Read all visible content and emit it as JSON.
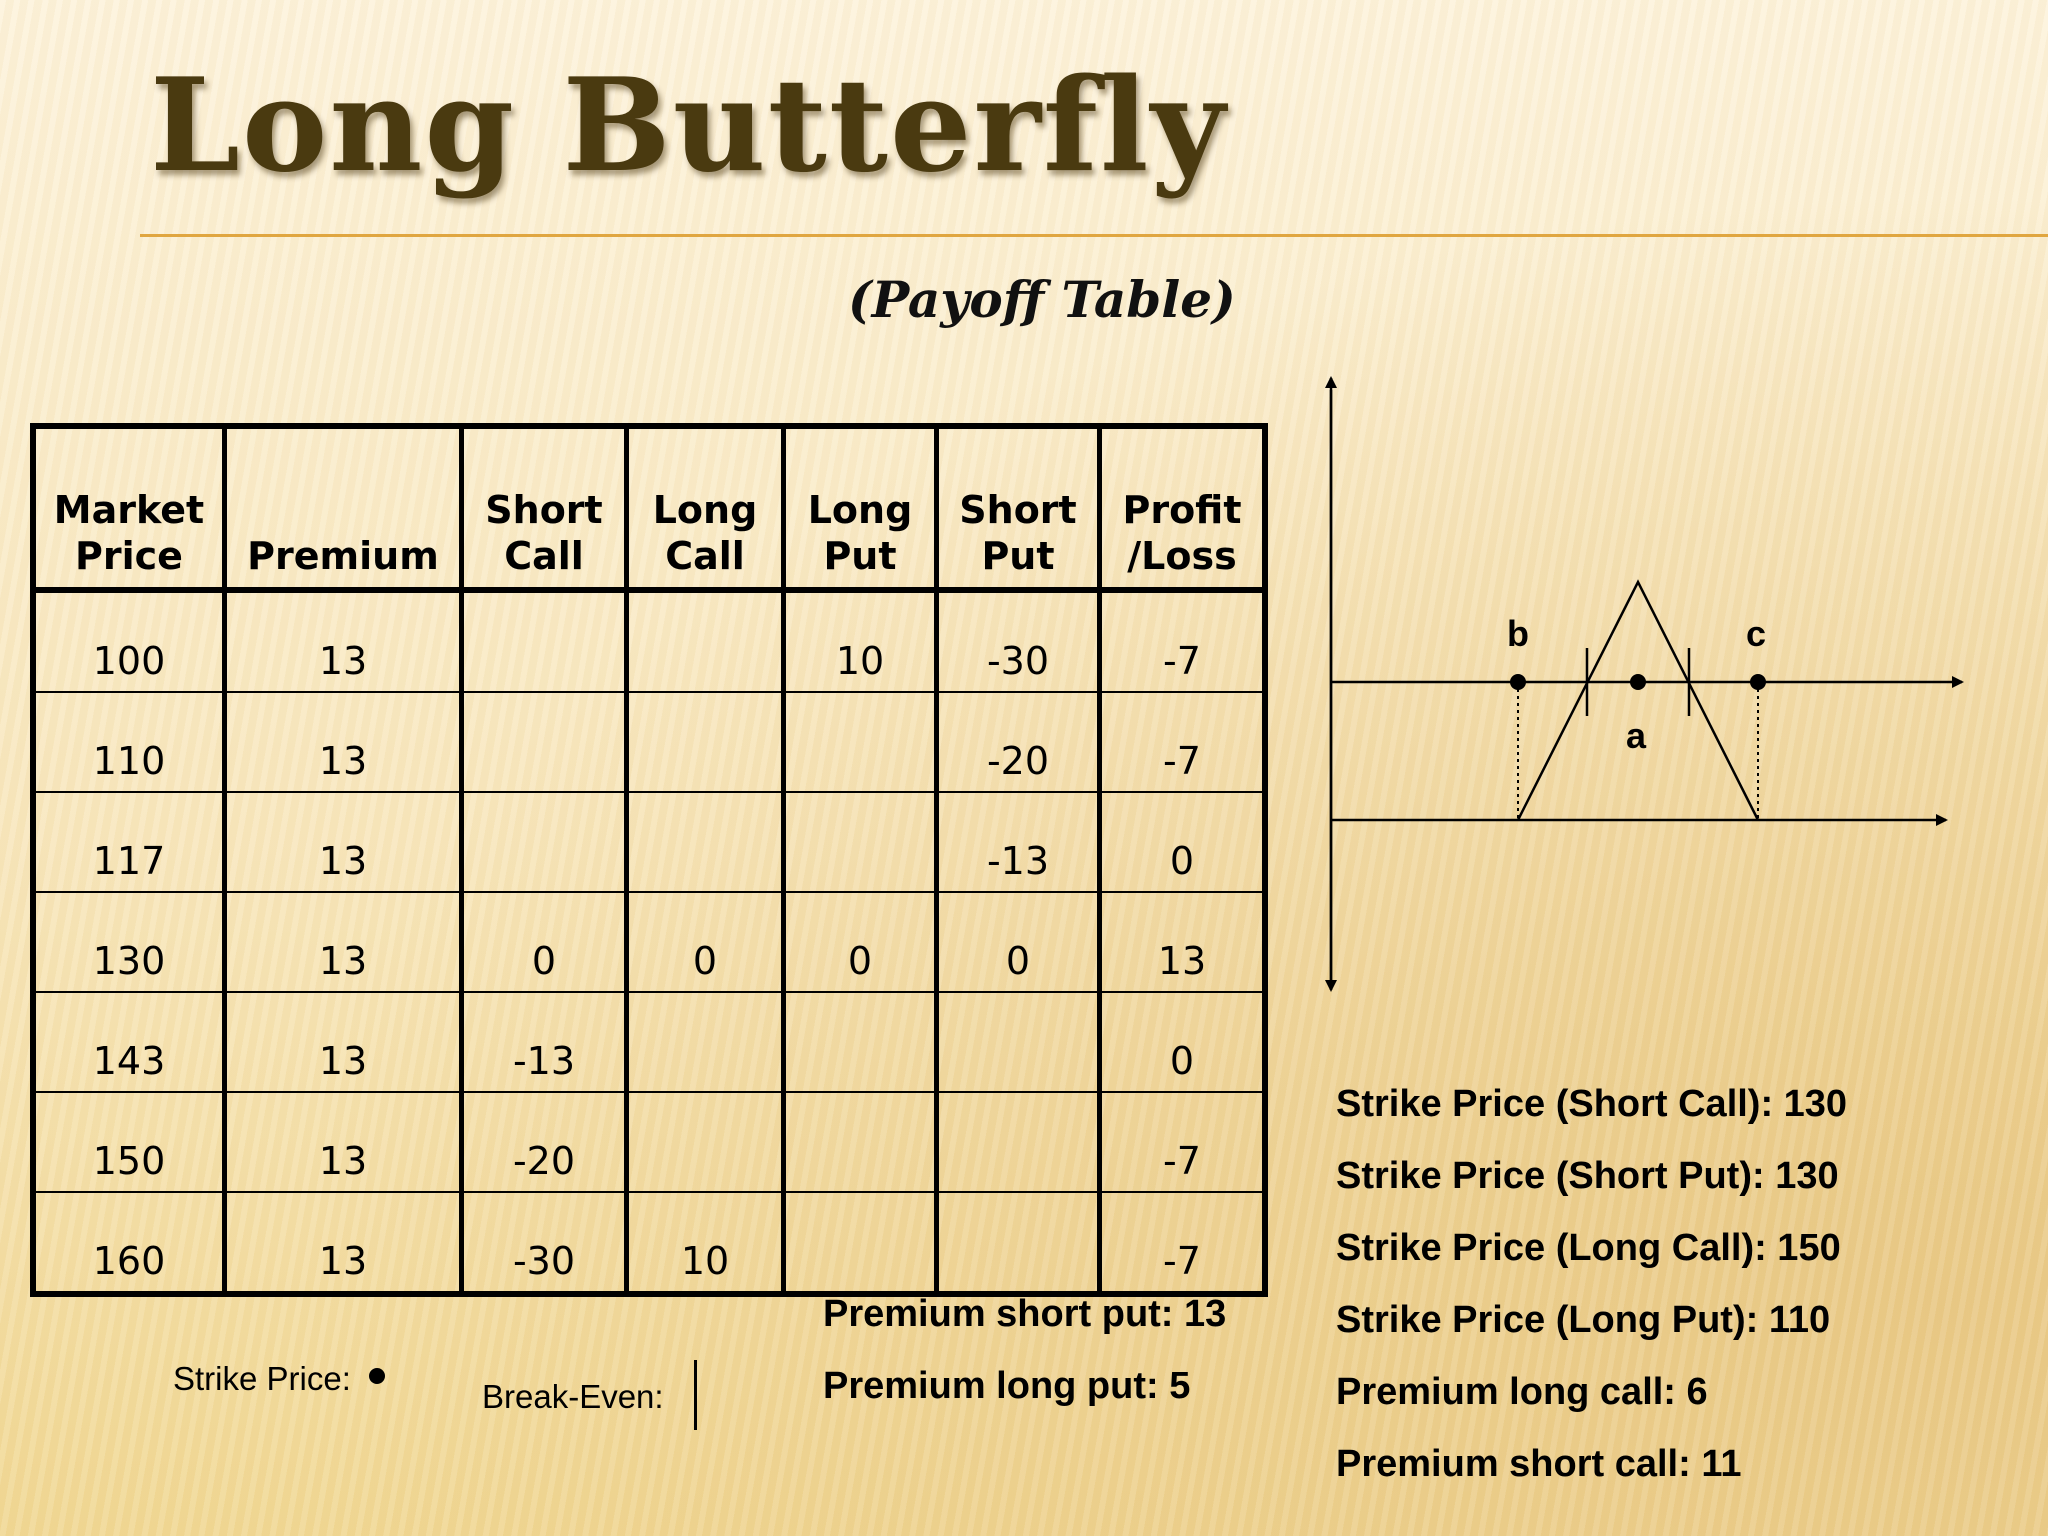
{
  "title": "Long Butterfly",
  "subtitle": "(Payoff Table)",
  "table": {
    "headers": [
      [
        "Market",
        "Price"
      ],
      [
        "",
        "Premium"
      ],
      [
        "Short",
        "Call"
      ],
      [
        "Long",
        "Call"
      ],
      [
        "Long",
        "Put"
      ],
      [
        "Short",
        "Put"
      ],
      [
        "Profit",
        "/Loss"
      ]
    ],
    "rows": [
      [
        "100",
        "13",
        "",
        "",
        "10",
        "-30",
        "-7"
      ],
      [
        "110",
        "13",
        "",
        "",
        "",
        "-20",
        "-7"
      ],
      [
        "117",
        "13",
        "",
        "",
        "",
        "-13",
        "0"
      ],
      [
        "130",
        "13",
        "0",
        "0",
        "0",
        "0",
        "13"
      ],
      [
        "143",
        "13",
        "-13",
        "",
        "",
        "",
        "0"
      ],
      [
        "150",
        "13",
        "-20",
        "",
        "",
        "",
        "-7"
      ],
      [
        "160",
        "13",
        "-30",
        "10",
        "",
        "",
        "-7"
      ]
    ]
  },
  "diagram": {
    "labels": {
      "b": "b",
      "a": "a",
      "c": "c"
    }
  },
  "strike_info": [
    "Strike Price (Short Call): 130",
    "Strike Price (Short Put): 130",
    "Strike Price (Long Call): 150",
    "Strike Price (Long Put): 110",
    "Premium long call: 6",
    "Premium short call: 11"
  ],
  "premium_info": [
    "Premium short put: 13",
    "Premium long put: 5"
  ],
  "legend": {
    "strike_price_label": "Strike Price:",
    "break_even_label": "Break-Even:"
  }
}
